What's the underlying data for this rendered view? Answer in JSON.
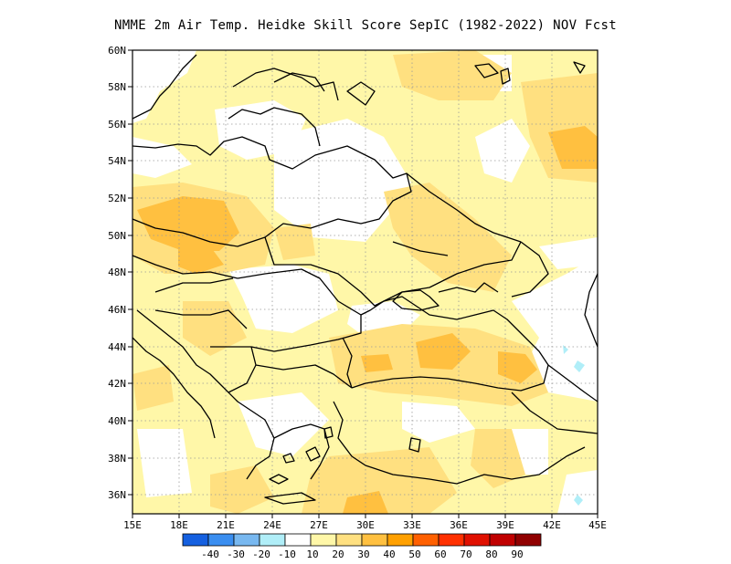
{
  "title": "NMME  2m Air Temp. Heidke Skill Score SepIC (1982-2022) NOV Fcst",
  "axes": {
    "lon_ticks": [
      "15E",
      "18E",
      "21E",
      "24E",
      "27E",
      "30E",
      "33E",
      "36E",
      "39E",
      "42E",
      "45E"
    ],
    "lat_ticks": [
      "60N",
      "58N",
      "56N",
      "54N",
      "52N",
      "50N",
      "48N",
      "46N",
      "44N",
      "42N",
      "40N",
      "38N",
      "36N"
    ],
    "lon_range": [
      15,
      45
    ],
    "lat_range": [
      35,
      60
    ]
  },
  "colorbar": {
    "labels": [
      "-40",
      "-30",
      "-20",
      "-10",
      "10",
      "20",
      "30",
      "40",
      "50",
      "60",
      "70",
      "80",
      "90"
    ],
    "colors": [
      "#1560e0",
      "#3a8ef0",
      "#78b8f0",
      "#b0eef8",
      "#ffffff",
      "#fff7a8",
      "#ffe080",
      "#ffc040",
      "#ffa000",
      "#ff6000",
      "#ff3000",
      "#e01000",
      "#c00000",
      "#900000"
    ]
  },
  "chart_data": {
    "type": "heatmap",
    "title": "NMME  2m Air Temp. Heidke Skill Score SepIC (1982-2022) NOV Fcst",
    "xlabel": "",
    "ylabel": "",
    "xlim": [
      15,
      45
    ],
    "ylim": [
      35,
      60
    ],
    "grid": true,
    "regions": [
      {
        "name": "",
        "lon": 17.5,
        "lat": 50.0,
        "value": 30
      },
      {
        "name": "",
        "lon": 19.5,
        "lat": 48.8,
        "value": 30
      },
      {
        "name": "",
        "lon": 34.5,
        "lat": 43.5,
        "value": 30
      },
      {
        "name": "",
        "lon": 39.3,
        "lat": 42.3,
        "value": 30
      },
      {
        "name": "",
        "lon": 43.5,
        "lat": 54.5,
        "value": 30
      },
      {
        "name": "",
        "lon": 30.0,
        "lat": 36.0,
        "value": 30
      },
      {
        "name": "",
        "lon": 26.0,
        "lat": 56.5,
        "value": 0
      },
      {
        "name": "",
        "lon": 30.0,
        "lat": 53.0,
        "value": 0
      },
      {
        "name": "",
        "lon": 29.0,
        "lat": 46.5,
        "value": 0
      },
      {
        "name": "",
        "lon": 33.0,
        "lat": 40.0,
        "value": 0
      },
      {
        "name": "",
        "lon": 43.5,
        "lat": 42.0,
        "value": 0
      },
      {
        "name": "",
        "lon": 43.5,
        "lat": 44.0,
        "value": -10
      }
    ]
  }
}
